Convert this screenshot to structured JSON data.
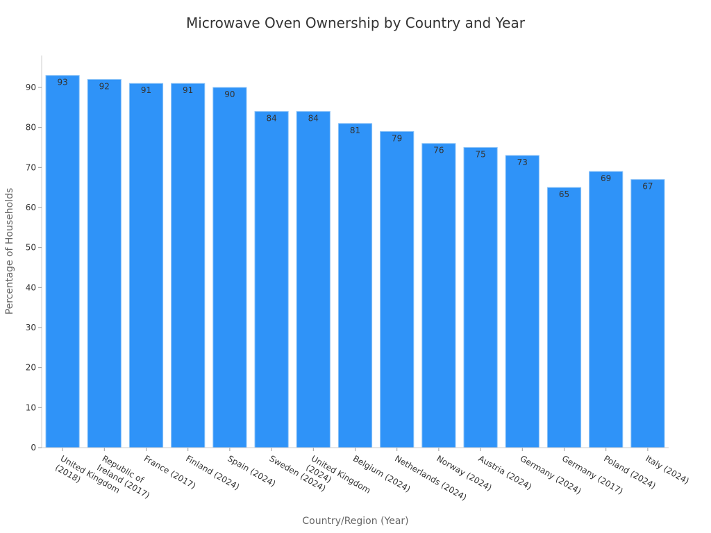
{
  "chart_data": {
    "type": "bar",
    "title": "Microwave Oven Ownership by Country and Year",
    "xlabel": "Country/Region (Year)",
    "ylabel": "Percentage of Households",
    "categories": [
      [
        "United Kingdom",
        "(2018)"
      ],
      [
        "Republic of",
        "Ireland (2017)"
      ],
      [
        "France (2017)"
      ],
      [
        "Finland (2024)"
      ],
      [
        "Spain (2024)"
      ],
      [
        "Sweden (2024)"
      ],
      [
        "United Kingdom",
        "(2024)"
      ],
      [
        "Belgium (2024)"
      ],
      [
        "Netherlands (2024)"
      ],
      [
        "Norway (2024)"
      ],
      [
        "Austria (2024)"
      ],
      [
        "Germany (2024)"
      ],
      [
        "Germany (2017)"
      ],
      [
        "Poland (2024)"
      ],
      [
        "Italy (2024)"
      ]
    ],
    "values": [
      93,
      92,
      91,
      91,
      90,
      84,
      84,
      81,
      79,
      76,
      75,
      73,
      65,
      69,
      67
    ],
    "ylim": [
      0,
      98
    ],
    "yticks": [
      0,
      10,
      20,
      30,
      40,
      50,
      60,
      70,
      80,
      90
    ],
    "grid": false,
    "data_labels": true,
    "bar_color": "#2f93f8",
    "bar_edge_color": "#8cc3f7"
  }
}
